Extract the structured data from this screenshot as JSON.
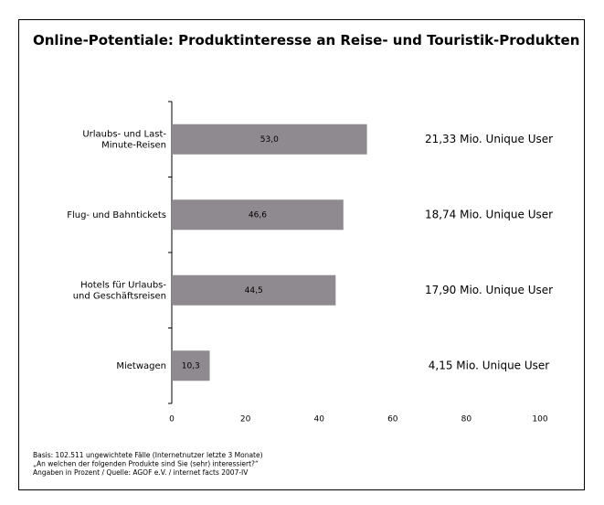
{
  "chart_data": {
    "type": "hbar",
    "title": "Online-Potentiale: Produktinteresse an Reise- und Touristik-Produkten",
    "categories": [
      "Urlaubs- und Last-\nMinute-Reisen",
      "Flug- und Bahntickets",
      "Hotels für Urlaubs-\nund Geschäftsreisen",
      "Mietwagen"
    ],
    "values": [
      53.0,
      46.6,
      44.5,
      10.3
    ],
    "value_labels": [
      "53,0",
      "46,6",
      "44,5",
      "10,3"
    ],
    "annotations": [
      "21,33 Mio. Unique User",
      "18,74 Mio. Unique User",
      "17,90 Mio. Unique User",
      "4,15 Mio. Unique User"
    ],
    "color": "#8f8a8f",
    "xlim": [
      0,
      100
    ],
    "xticks": [
      0,
      20,
      40,
      60,
      80,
      100
    ],
    "footnotes": [
      "Basis: 102.511 ungewichtete Fälle (Internetnutzer letzte 3 Monate)",
      "„An welchen der folgenden Produkte sind Sie (sehr) interessiert?“",
      "Angaben in Prozent / Quelle: AGOF e.V. / internet facts 2007-IV"
    ]
  }
}
